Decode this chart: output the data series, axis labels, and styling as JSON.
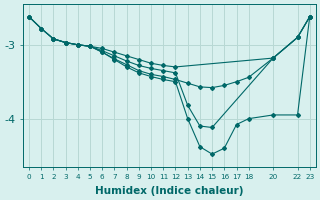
{
  "xlabel": "Humidex (Indice chaleur)",
  "background_color": "#d8f0ee",
  "grid_color": "#b8d8d4",
  "line_color": "#006868",
  "xlim": [
    -0.5,
    23.5
  ],
  "ylim": [
    -4.65,
    -2.45
  ],
  "yticks": [
    -4,
    -3
  ],
  "xticks": [
    0,
    1,
    2,
    3,
    4,
    5,
    6,
    7,
    8,
    9,
    10,
    11,
    12,
    13,
    14,
    15,
    16,
    17,
    18,
    20,
    22,
    23
  ],
  "lines": [
    {
      "x": [
        0,
        1,
        2,
        3,
        4,
        5,
        6,
        7,
        8,
        9,
        10,
        11,
        12,
        13,
        14,
        15,
        16,
        17,
        18,
        20,
        22,
        23
      ],
      "y": [
        -2.62,
        -2.78,
        -2.92,
        -2.97,
        -3.0,
        -3.02,
        -3.1,
        -3.19,
        -3.27,
        -3.35,
        -3.4,
        -3.43,
        -3.47,
        -3.52,
        -3.57,
        -3.58,
        -3.55,
        -3.5,
        -3.44,
        -3.18,
        -2.9,
        -2.62
      ]
    },
    {
      "x": [
        0,
        1,
        2,
        3,
        4,
        5,
        6,
        7,
        8,
        9,
        10,
        11,
        12,
        13,
        14,
        15,
        20,
        22,
        23
      ],
      "y": [
        -2.62,
        -2.78,
        -2.92,
        -2.97,
        -3.0,
        -3.02,
        -3.08,
        -3.15,
        -3.22,
        -3.28,
        -3.32,
        -3.35,
        -3.38,
        -3.82,
        -4.1,
        -4.12,
        -3.18,
        -2.9,
        -2.62
      ]
    },
    {
      "x": [
        2,
        3,
        4,
        5,
        6,
        7,
        8,
        9,
        10,
        11,
        12,
        13,
        14,
        15,
        16,
        17,
        18,
        20,
        22,
        23
      ],
      "y": [
        -2.92,
        -2.97,
        -3.0,
        -3.02,
        -3.1,
        -3.2,
        -3.3,
        -3.38,
        -3.43,
        -3.47,
        -3.5,
        -4.0,
        -4.38,
        -4.48,
        -4.4,
        -4.08,
        -4.0,
        -3.95,
        -3.95,
        -2.62
      ]
    },
    {
      "x": [
        0,
        1,
        2,
        3,
        4,
        5,
        6,
        7,
        8,
        9,
        10,
        11,
        12,
        20,
        22,
        23
      ],
      "y": [
        -2.62,
        -2.78,
        -2.92,
        -2.97,
        -3.0,
        -3.02,
        -3.05,
        -3.1,
        -3.15,
        -3.2,
        -3.25,
        -3.28,
        -3.3,
        -3.18,
        -2.9,
        -2.62
      ]
    }
  ]
}
